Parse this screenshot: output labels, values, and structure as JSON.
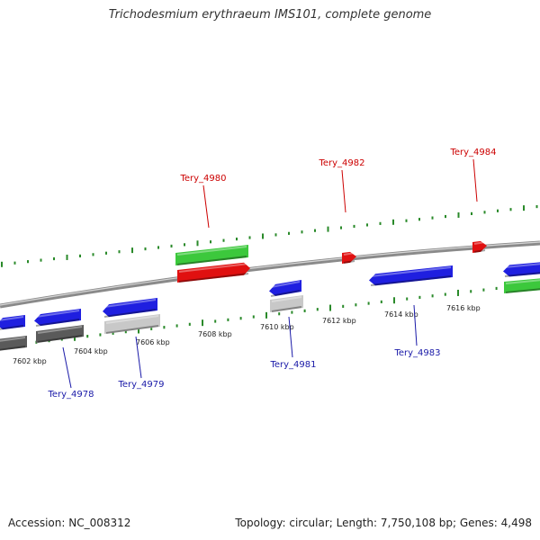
{
  "header": {
    "title": "Trichodesmium erythraeum IMS101, complete genome"
  },
  "footer": {
    "accession": "Accession: NC_008312",
    "topology": "Topology: circular; Length: 7,750,108 bp; Genes: 4,498"
  },
  "colors": {
    "backbone": "#8a8a8a",
    "tick_top": "#2a8a2a",
    "tick_bottom": "#2a8a2a",
    "gene_blue": "#1f1fe0",
    "gene_red": "#e01010",
    "gene_green": "#3cc83c",
    "gene_dark_gray": "#5a5a5a",
    "gene_light_gray": "#c8c8c8",
    "label_top": "#cc0000",
    "label_bottom": "#1a1aa8",
    "scale_text": "#222222"
  },
  "scale_labels": [
    "7602 kbp",
    "7604 kbp",
    "7606 kbp",
    "7608 kbp",
    "7610 kbp",
    "7612 kbp",
    "7614 kbp",
    "7616 kbp"
  ],
  "gene_labels": {
    "top": [
      "Tery_4980",
      "Tery_4982",
      "Tery_4984"
    ],
    "bottom": [
      "Tery_4978",
      "Tery_4979",
      "Tery_4981",
      "Tery_4983"
    ]
  }
}
